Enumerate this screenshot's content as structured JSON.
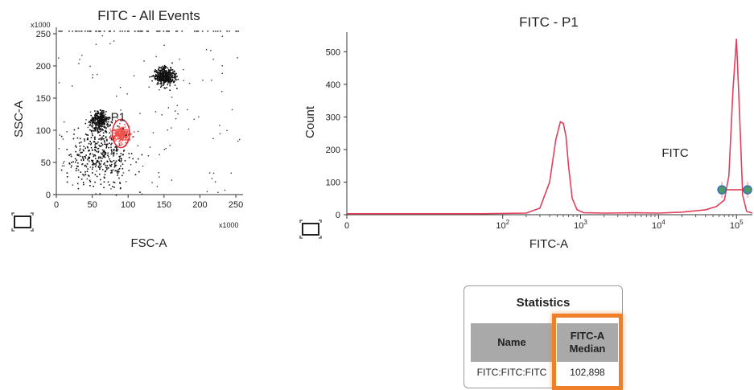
{
  "scatter_panel": {
    "title": "FITC - All Events",
    "xlabel": "FSC-A",
    "ylabel": "SSC-A",
    "x_multiplier": "x1000",
    "y_multiplier": "x1000",
    "gate_label": "P1",
    "gate_color": "#e03040"
  },
  "histogram_panel": {
    "title": "FITC - P1",
    "xlabel": "FITC-A",
    "ylabel": "Count",
    "marker_label": "FITC",
    "line_color": "#e0405a"
  },
  "statistics": {
    "title": "Statistics",
    "col_name": "Name",
    "col_median_line1": "FITC-A",
    "col_median_line2": "Median",
    "row_name": "FITC:FITC:FITC",
    "row_median": "102,898",
    "highlight_color": "#f07f2a"
  },
  "chart_data": [
    {
      "type": "scatter",
      "title": "FITC - All Events",
      "xlabel": "FSC-A",
      "ylabel": "SSC-A",
      "xlim": [
        0,
        260
      ],
      "ylim": [
        0,
        260
      ],
      "xticks": [
        "0",
        "50",
        "100",
        "150",
        "200",
        "250"
      ],
      "yticks": [
        "0",
        "50",
        "100",
        "150",
        "200",
        "250"
      ],
      "clusters": [
        {
          "center": [
            60,
            115
          ],
          "spread": [
            10,
            12
          ]
        },
        {
          "center": [
            150,
            185
          ],
          "spread": [
            12,
            12
          ]
        },
        {
          "center": [
            90,
            95
          ],
          "spread": [
            10,
            10
          ],
          "gated": true
        },
        {
          "center": [
            60,
            60
          ],
          "spread": [
            35,
            40
          ]
        }
      ],
      "gate": {
        "name": "P1",
        "center": [
          90,
          95
        ],
        "radius": [
          12,
          22
        ]
      }
    },
    {
      "type": "line",
      "title": "FITC - P1",
      "xlabel": "FITC-A",
      "ylabel": "Count",
      "xscale": "log",
      "xlim": [
        1,
        160000
      ],
      "ylim": [
        0,
        560
      ],
      "xticks": [
        "0",
        "10^2",
        "10^3",
        "10^4",
        "10^5"
      ],
      "yticks": [
        "0",
        "100",
        "200",
        "300",
        "400",
        "500"
      ],
      "series": [
        {
          "x": [
            1,
            50,
            200,
            300,
            400,
            480,
            550,
            600,
            650,
            700,
            780,
            900,
            1100,
            2000,
            5000,
            10000,
            20000,
            40000,
            55000,
            70000,
            80000,
            90000,
            100000,
            110000,
            120000,
            135000,
            160000
          ],
          "values": [
            3,
            3,
            5,
            20,
            100,
            230,
            285,
            280,
            240,
            150,
            50,
            15,
            6,
            5,
            6,
            5,
            8,
            15,
            25,
            45,
            120,
            380,
            540,
            300,
            60,
            10,
            5
          ]
        }
      ],
      "marker": {
        "name": "FITC",
        "range": [
          65000,
          160000
        ]
      }
    }
  ]
}
